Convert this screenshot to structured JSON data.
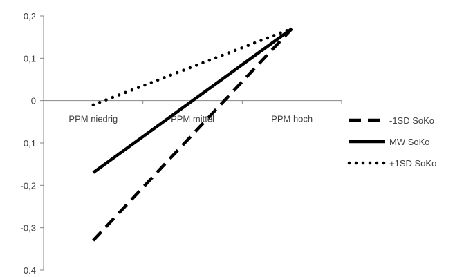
{
  "chart_data": {
    "type": "line",
    "categories": [
      "PPM niedrig",
      "PPM mittel",
      "PPM hoch"
    ],
    "series": [
      {
        "name": "-1SD SoKo",
        "values": [
          -0.33,
          -0.08,
          0.17
        ],
        "dash": "long-dash"
      },
      {
        "name": "MW SoKo",
        "values": [
          -0.17,
          0.0,
          0.17
        ],
        "dash": "solid"
      },
      {
        "name": "+1SD SoKo",
        "values": [
          -0.01,
          0.08,
          0.17
        ],
        "dash": "dotted"
      }
    ],
    "y_ticks": [
      "0,2",
      "0,1",
      "0",
      "-0,1",
      "-0,2",
      "-0,3",
      "-0.4"
    ],
    "ylim": [
      -0.4,
      0.2
    ],
    "grid": false,
    "legend_position": "right",
    "line_color": "#000000",
    "axis_color": "#868686"
  }
}
